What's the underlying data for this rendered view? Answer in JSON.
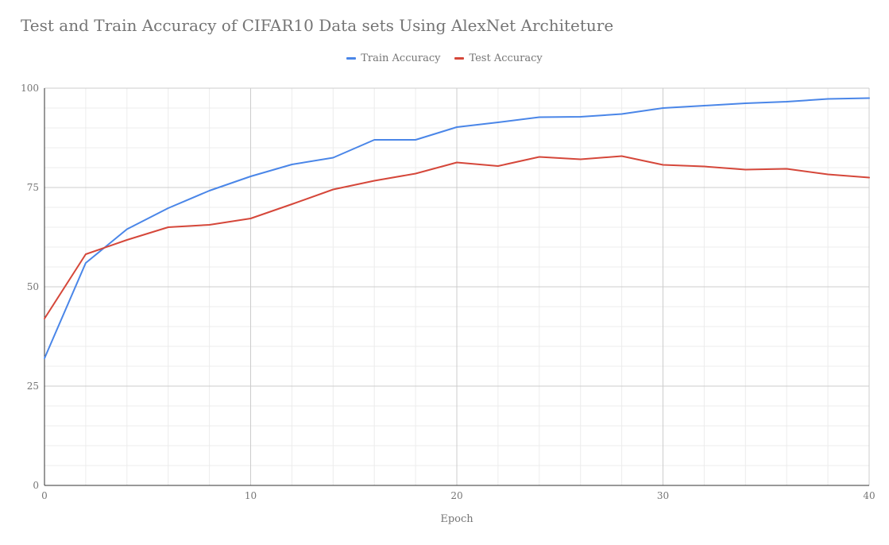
{
  "chart_data": {
    "type": "line",
    "title": "Test and Train Accuracy of CIFAR10 Data sets Using AlexNet Architeture",
    "xlabel": "Epoch",
    "ylabel": "",
    "xlim": [
      0,
      40
    ],
    "ylim": [
      0,
      100
    ],
    "x_ticks": [
      0,
      10,
      20,
      30,
      40
    ],
    "y_ticks": [
      0,
      25,
      50,
      75,
      100
    ],
    "grid": true,
    "legend_position": "top",
    "x": [
      0,
      2,
      4,
      6,
      8,
      10,
      12,
      14,
      16,
      18,
      20,
      22,
      24,
      26,
      28,
      30,
      32,
      34,
      36,
      38,
      40
    ],
    "series": [
      {
        "name": "Train Accuracy",
        "color": "#4a86e8",
        "values": [
          32.0,
          56.0,
          64.5,
          69.8,
          74.2,
          77.8,
          80.8,
          82.5,
          87.0,
          87.0,
          90.2,
          91.4,
          92.7,
          92.8,
          93.5,
          95.0,
          95.6,
          96.2,
          96.6,
          97.3,
          97.5
        ]
      },
      {
        "name": "Test Accuracy",
        "color": "#d5473a",
        "values": [
          42.0,
          58.2,
          61.8,
          65.0,
          65.6,
          67.2,
          70.8,
          74.5,
          76.7,
          78.5,
          81.3,
          80.4,
          82.7,
          82.1,
          82.9,
          80.7,
          80.3,
          79.5,
          79.7,
          78.3,
          77.5
        ]
      }
    ]
  }
}
